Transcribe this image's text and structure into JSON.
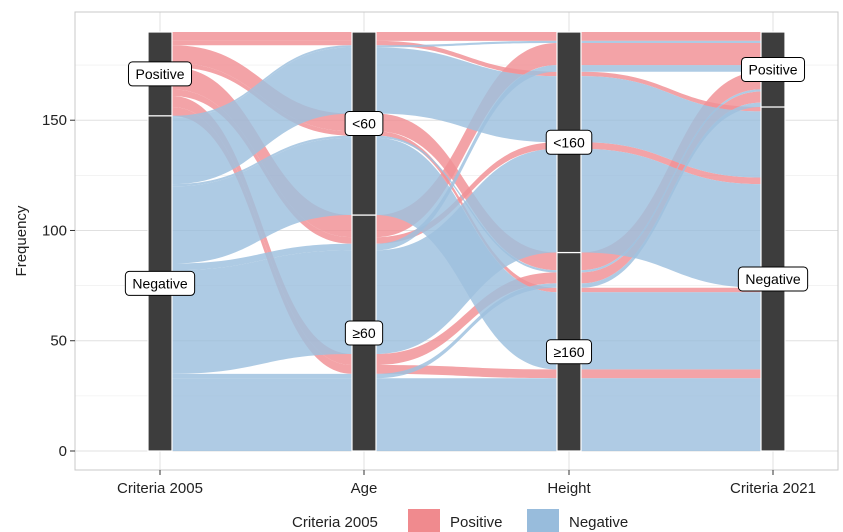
{
  "chart_data": {
    "type": "alluvial",
    "xlabel": "",
    "ylabel": "Frequency",
    "ylim": [
      0,
      190
    ],
    "yticks": [
      0,
      50,
      100,
      150
    ],
    "axes": [
      "Criteria 2005",
      "Age",
      "Height",
      "Criteria 2021"
    ],
    "fill_variable": "Criteria 2005",
    "legend": {
      "title": "Criteria 2005",
      "position": "bottom",
      "entries": [
        {
          "name": "Positive",
          "color": "#f08a8e"
        },
        {
          "name": "Negative",
          "color": "#98bcdc"
        }
      ]
    },
    "strata": [
      [
        {
          "label": "Positive",
          "size": 38
        },
        {
          "label": "Negative",
          "size": 152
        }
      ],
      [
        {
          "label": "<60",
          "size": 83
        },
        {
          "label": "≥60",
          "size": 107
        }
      ],
      [
        {
          "label": "<160",
          "size": 100
        },
        {
          "label": "≥160",
          "size": 90
        }
      ],
      [
        {
          "label": "Positive",
          "size": 34
        },
        {
          "label": "Negative",
          "size": 156
        }
      ]
    ],
    "flows": [
      {
        "group": "Positive",
        "path": [
          "Positive",
          "<60",
          "<160",
          "Positive"
        ],
        "value": 4
      },
      {
        "group": "Positive",
        "path": [
          "Positive",
          "<60",
          "<160",
          "Negative"
        ],
        "value": 2
      },
      {
        "group": "Positive",
        "path": [
          "Positive",
          "<60",
          "≥160",
          "Positive"
        ],
        "value": 8
      },
      {
        "group": "Positive",
        "path": [
          "Positive",
          "<60",
          "≥160",
          "Negative"
        ],
        "value": 2
      },
      {
        "group": "Positive",
        "path": [
          "Positive",
          "≥60",
          "<160",
          "Positive"
        ],
        "value": 10
      },
      {
        "group": "Positive",
        "path": [
          "Positive",
          "≥60",
          "<160",
          "Negative"
        ],
        "value": 3
      },
      {
        "group": "Positive",
        "path": [
          "Positive",
          "≥60",
          "≥160",
          "Positive"
        ],
        "value": 5
      },
      {
        "group": "Positive",
        "path": [
          "Positive",
          "≥60",
          "≥160",
          "Negative"
        ],
        "value": 4
      },
      {
        "group": "Negative",
        "path": [
          "Negative",
          "<60",
          "<160",
          "Positive"
        ],
        "value": 1
      },
      {
        "group": "Negative",
        "path": [
          "Negative",
          "<60",
          "<160",
          "Negative"
        ],
        "value": 30
      },
      {
        "group": "Negative",
        "path": [
          "Negative",
          "<60",
          "≥160",
          "Positive"
        ],
        "value": 1
      },
      {
        "group": "Negative",
        "path": [
          "Negative",
          "<60",
          "≥160",
          "Negative"
        ],
        "value": 35
      },
      {
        "group": "Negative",
        "path": [
          "Negative",
          "≥60",
          "<160",
          "Positive"
        ],
        "value": 3
      },
      {
        "group": "Negative",
        "path": [
          "Negative",
          "≥60",
          "<160",
          "Negative"
        ],
        "value": 47
      },
      {
        "group": "Negative",
        "path": [
          "Negative",
          "≥60",
          "≥160",
          "Positive"
        ],
        "value": 2
      },
      {
        "group": "Negative",
        "path": [
          "Negative",
          "≥60",
          "≥160",
          "Negative"
        ],
        "value": 33
      }
    ],
    "stratum_fill": "#3d3d3d",
    "grid": true
  }
}
